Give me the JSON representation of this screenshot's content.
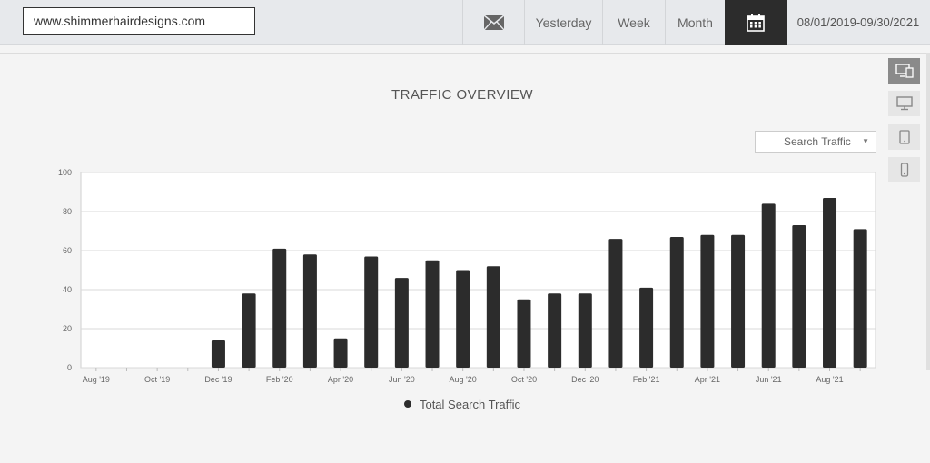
{
  "header": {
    "url": "www.shimmerhairdesigns.com",
    "mail_icon": "envelope-icon",
    "periods": [
      "Yesterday",
      "Week",
      "Month"
    ],
    "calendar_icon": "calendar-icon",
    "date_range": "08/01/2019-09/30/2021"
  },
  "title": "TRAFFIC  OVERVIEW",
  "device_buttons": [
    "all-devices-icon",
    "desktop-icon",
    "tablet-icon",
    "mobile-icon"
  ],
  "traffic_select": {
    "value": "Search Traffic"
  },
  "legend": {
    "label": "Total Search Traffic",
    "color": "#2c2c2c"
  },
  "chart_data": {
    "type": "bar",
    "categories": [
      "Aug '19",
      "Sep '19",
      "Oct '19",
      "Nov '19",
      "Dec '19",
      "Jan '20",
      "Feb '20",
      "Mar '20",
      "Apr '20",
      "May '20",
      "Jun '20",
      "Jul '20",
      "Aug '20",
      "Sep '20",
      "Oct '20",
      "Nov '20",
      "Dec '20",
      "Jan '21",
      "Feb '21",
      "Mar '21",
      "Apr '21",
      "May '21",
      "Jun '21",
      "Jul '21",
      "Aug '21",
      "Sep '21"
    ],
    "x_tick_labels": [
      "Aug '19",
      "Oct '19",
      "Dec '19",
      "Feb '20",
      "Apr '20",
      "Jun '20",
      "Aug '20",
      "Oct '20",
      "Dec '20",
      "Feb '21",
      "Apr '21",
      "Jun '21",
      "Aug '21"
    ],
    "series": [
      {
        "name": "Total Search Traffic",
        "values": [
          0,
          0,
          0,
          0,
          14,
          38,
          61,
          58,
          15,
          57,
          46,
          55,
          50,
          52,
          35,
          38,
          38,
          66,
          41,
          67,
          68,
          68,
          84,
          73,
          87,
          71
        ]
      }
    ],
    "ylim": [
      0,
      100
    ],
    "y_ticks": [
      0,
      20,
      40,
      60,
      80,
      100
    ],
    "grid": true,
    "legend_position": "bottom",
    "bar_color": "#2c2c2c"
  }
}
